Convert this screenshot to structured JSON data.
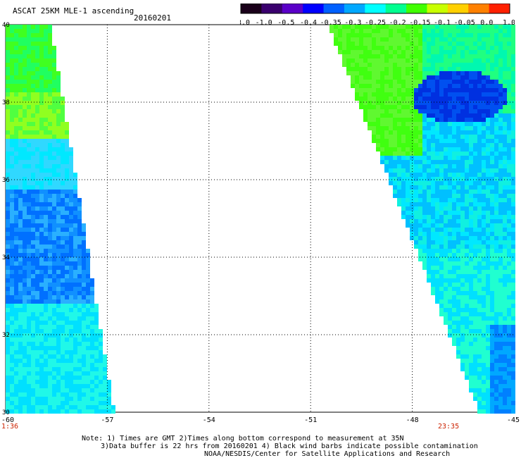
{
  "header": {
    "title": "ASCAT 25KM MLE-1 ascending",
    "date": "20160201"
  },
  "colorbar": {
    "labels": [
      "-3.0",
      "-1.0",
      "-0.5",
      "-0.4",
      "-0.35",
      "-0.3",
      "-0.25",
      "-0.2",
      "-0.15",
      "-0.1",
      "-0.05",
      "0.0",
      "1.0"
    ],
    "colors": [
      "#1a001a",
      "#3a006e",
      "#5a00c8",
      "#0000ff",
      "#0060ff",
      "#00a8ff",
      "#00ffff",
      "#00ff90",
      "#40ff00",
      "#c8ff00",
      "#ffd000",
      "#ff8000",
      "#ff2000"
    ]
  },
  "map": {
    "lat_min": 30,
    "lat_max": 40,
    "lon_min": -60,
    "lon_max": -45,
    "lat_ticks": [
      40,
      38,
      36,
      34,
      32,
      30
    ],
    "lat_tick_labels": [
      "40",
      "38",
      "36",
      "34",
      "32",
      "30"
    ],
    "lon_ticks": [
      -60,
      -57,
      -54,
      -51,
      -48,
      -45
    ],
    "lon_tick_labels": [
      "-60",
      "-57",
      "-54",
      "-51",
      "-48",
      "-45"
    ],
    "gridlines": true,
    "left_swath_time": "1:36",
    "right_swath_time": "23:35"
  },
  "notes": {
    "line1": "Note: 1) Times are GMT 2)Times along bottom correspond to measurement at 35N",
    "line2": "3)Data buffer is 22 hrs from 20160201 4) Black wind barbs indicate possible contamination",
    "line3": "NOAA/NESDIS/Center for Satellite Applications and Research"
  }
}
